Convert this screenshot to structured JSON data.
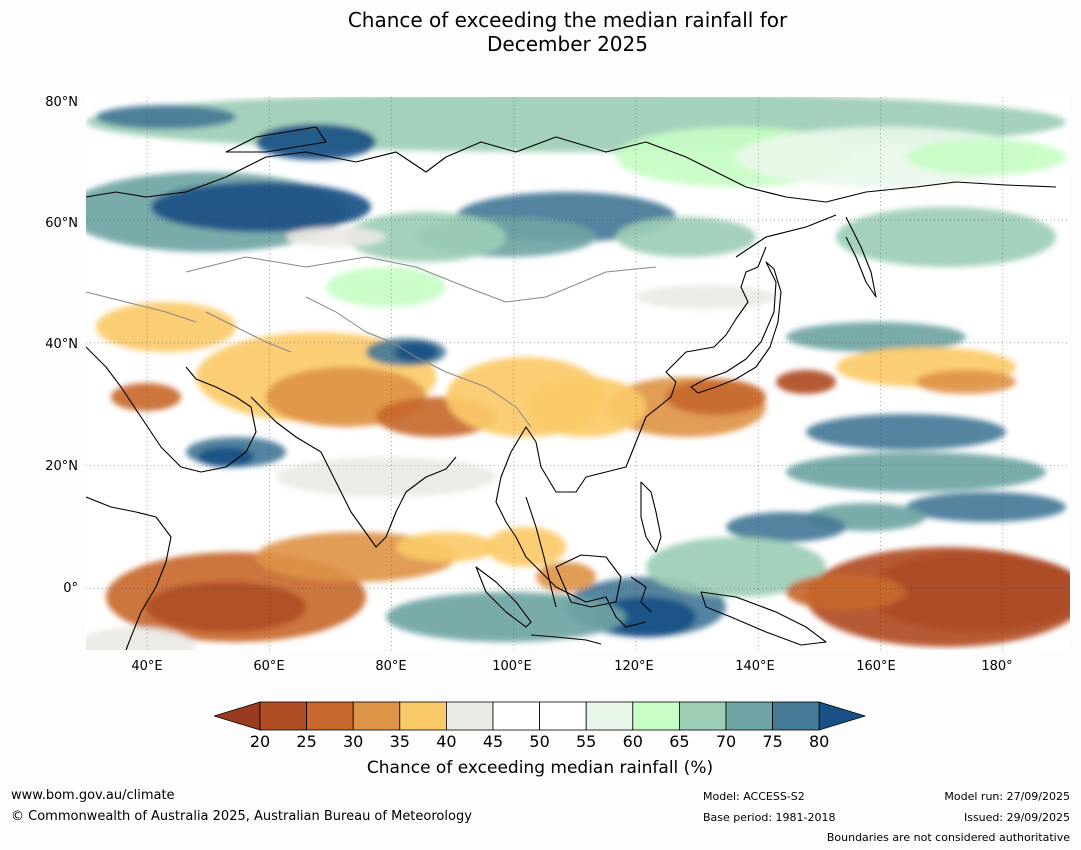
{
  "title": {
    "line1": "Chance of exceeding the median rainfall for",
    "line2": "December 2025"
  },
  "map": {
    "region": "Asia / Western Pacific",
    "lat_labels": [
      "80°N",
      "60°N",
      "40°N",
      "20°N",
      "0°"
    ],
    "lon_labels": [
      "40°E",
      "60°E",
      "80°E",
      "100°E",
      "120°E",
      "140°E",
      "160°E",
      "180°"
    ],
    "lat_range": [
      -10,
      80
    ],
    "lon_range": [
      30,
      191
    ]
  },
  "legend": {
    "colors": [
      "#9a3a1f",
      "#b04d25",
      "#c8682e",
      "#de9446",
      "#fbca68",
      "#ebe9e4",
      "#ffffff",
      "#ffffff",
      "#e9f7ea",
      "#c7fdc6",
      "#9ccdb5",
      "#6fa4a4",
      "#457a97",
      "#195086"
    ],
    "ticks": [
      "20",
      "25",
      "30",
      "35",
      "40",
      "45",
      "50",
      "55",
      "60",
      "65",
      "70",
      "75",
      "80"
    ],
    "label": "Chance of exceeding median rainfall (%)"
  },
  "footer": {
    "website": "www.bom.gov.au/climate",
    "copyright": "© Commonwealth of Australia 2025, Australian Bureau of Meteorology",
    "model": "Model: ACCESS-S2",
    "base_period": "Base period: 1981-2018",
    "model_run": "Model run: 27/09/2025",
    "issued": "Issued: 29/09/2025",
    "disclaimer": "Boundaries are not considered authoritative"
  }
}
